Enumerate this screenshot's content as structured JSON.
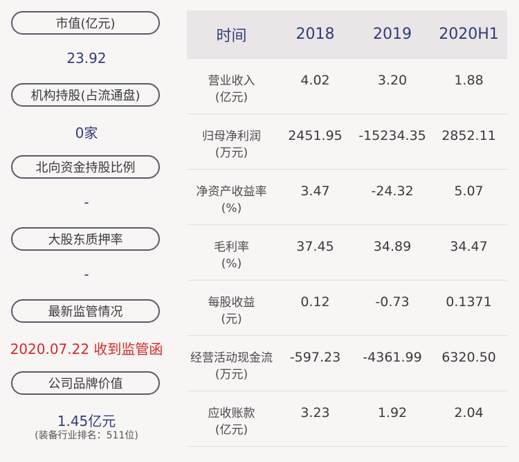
{
  "left": {
    "items": [
      {
        "label": "市值(亿元)",
        "value": "23.92"
      },
      {
        "label": "机构持股(占流通盘)",
        "value": "0家"
      },
      {
        "label": "北向资金持股比例",
        "value": "-"
      },
      {
        "label": "大股东质押率",
        "value": "-"
      },
      {
        "label": "最新监管情况",
        "value": "2020.07.22 收到监管函"
      },
      {
        "label": "公司品牌价值",
        "value": "1.45亿元",
        "note": "(装备行业排名：511位)"
      }
    ]
  },
  "table": {
    "headers": [
      "时间",
      "2018",
      "2019",
      "2020H1"
    ],
    "rows": [
      {
        "name": "营业收入",
        "unit": "(亿元)",
        "values": [
          "4.02",
          "3.20",
          "1.88"
        ]
      },
      {
        "name": "归母净利润",
        "unit": "(万元)",
        "values": [
          "2451.95",
          "-15234.35",
          "2852.11"
        ]
      },
      {
        "name": "净资产收益率",
        "unit": "(%)",
        "values": [
          "3.47",
          "-24.32",
          "5.07"
        ]
      },
      {
        "name": "毛利率",
        "unit": "(%)",
        "values": [
          "37.45",
          "34.89",
          "34.47"
        ]
      },
      {
        "name": "每股收益",
        "unit": "(元)",
        "values": [
          "0.12",
          "-0.73",
          "0.1371"
        ]
      },
      {
        "name": "经营活动现金流",
        "unit": "(万元)",
        "values": [
          "-597.23",
          "-4361.99",
          "6320.50"
        ]
      },
      {
        "name": "应收账款",
        "unit": "(亿元)",
        "values": [
          "3.23",
          "1.92",
          "2.04"
        ]
      }
    ]
  },
  "colors": {
    "accent": "#2f3d7a",
    "alert": "#d8282a",
    "header_bg": "#eae6e7",
    "background": "#f8f5f5"
  }
}
